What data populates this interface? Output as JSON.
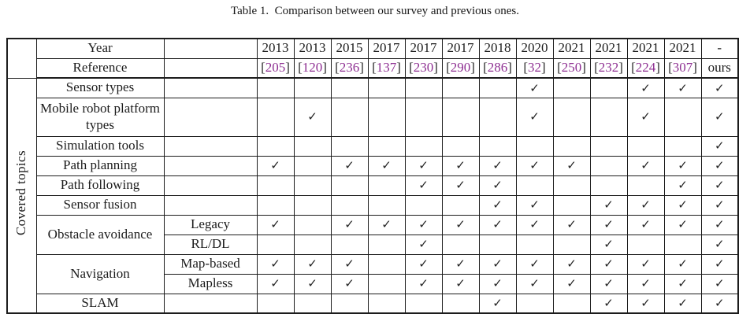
{
  "caption": "Table 1.  Comparison between our survey and previous ones.",
  "side_label": "Covered topics",
  "checkmark_glyph": "✓",
  "colors": {
    "reference_accent": "#8e2f92",
    "bracket": "#2b2b2b",
    "text": "#1c1c1c"
  },
  "header": {
    "year_label": "Year",
    "reference_label": "Reference",
    "years": [
      "2013",
      "2013",
      "2015",
      "2017",
      "2017",
      "2017",
      "2018",
      "2020",
      "2021",
      "2021",
      "2021",
      "2021",
      "-"
    ],
    "references": [
      {
        "text": "205",
        "bracketed": true
      },
      {
        "text": "120",
        "bracketed": true
      },
      {
        "text": "236",
        "bracketed": true
      },
      {
        "text": "137",
        "bracketed": true
      },
      {
        "text": "230",
        "bracketed": true
      },
      {
        "text": "290",
        "bracketed": true
      },
      {
        "text": "286",
        "bracketed": true
      },
      {
        "text": "32",
        "bracketed": true
      },
      {
        "text": "250",
        "bracketed": true
      },
      {
        "text": "232",
        "bracketed": true
      },
      {
        "text": "224",
        "bracketed": true
      },
      {
        "text": "307",
        "bracketed": true
      },
      {
        "text": "ours",
        "bracketed": false
      }
    ]
  },
  "rows": [
    {
      "topic": "Sensor types",
      "sub": "",
      "checks": [
        0,
        0,
        0,
        0,
        0,
        0,
        0,
        1,
        0,
        0,
        1,
        1,
        1
      ]
    },
    {
      "topic": "Mobile robot platform types",
      "sub": "",
      "tall": true,
      "checks": [
        0,
        1,
        0,
        0,
        0,
        0,
        0,
        1,
        0,
        0,
        1,
        0,
        1
      ]
    },
    {
      "topic": "Simulation tools",
      "sub": "",
      "checks": [
        0,
        0,
        0,
        0,
        0,
        0,
        0,
        0,
        0,
        0,
        0,
        0,
        1
      ]
    },
    {
      "topic": "Path planning",
      "sub": "",
      "checks": [
        1,
        0,
        1,
        1,
        1,
        1,
        1,
        1,
        1,
        0,
        1,
        1,
        1
      ]
    },
    {
      "topic": "Path following",
      "sub": "",
      "checks": [
        0,
        0,
        0,
        0,
        1,
        1,
        1,
        0,
        0,
        0,
        0,
        1,
        1
      ]
    },
    {
      "topic": "Sensor fusion",
      "sub": "",
      "checks": [
        0,
        0,
        0,
        0,
        0,
        0,
        1,
        1,
        0,
        1,
        1,
        1,
        1
      ]
    },
    {
      "topic": "Obstacle avoidance",
      "group_size": 2,
      "sub": "Legacy",
      "checks": [
        1,
        0,
        1,
        1,
        1,
        1,
        1,
        1,
        1,
        1,
        1,
        1,
        1
      ]
    },
    {
      "sub": "RL/DL",
      "checks": [
        0,
        0,
        0,
        0,
        1,
        0,
        0,
        0,
        0,
        1,
        0,
        0,
        1
      ]
    },
    {
      "topic": "Navigation",
      "group_size": 2,
      "sub": "Map-based",
      "checks": [
        1,
        1,
        1,
        0,
        1,
        1,
        1,
        1,
        1,
        1,
        1,
        1,
        1
      ]
    },
    {
      "sub": "Mapless",
      "checks": [
        1,
        1,
        1,
        0,
        1,
        1,
        1,
        1,
        1,
        1,
        1,
        1,
        1
      ]
    },
    {
      "topic": "SLAM",
      "sub": "",
      "checks": [
        0,
        0,
        0,
        0,
        0,
        0,
        1,
        0,
        0,
        1,
        1,
        1,
        1
      ]
    }
  ]
}
